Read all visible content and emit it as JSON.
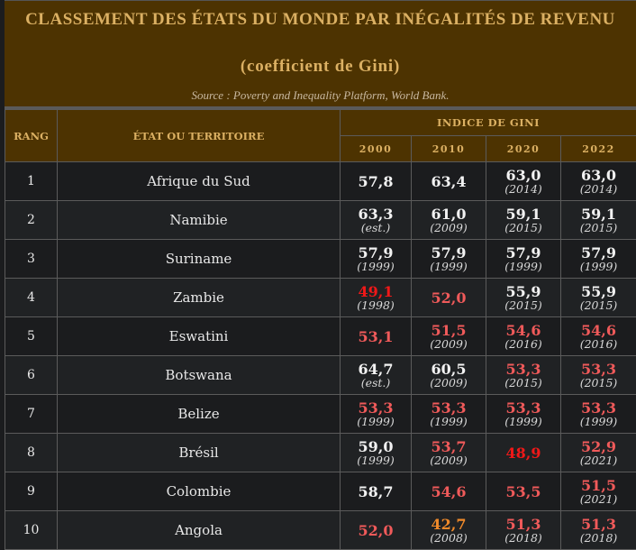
{
  "caption": {
    "title_line1": "CLASSEMENT DES ÉTATS DU MONDE PAR INÉGALITÉS DE REVENU",
    "title_line2": "(coefficient de Gini)",
    "source": "Source : Poverty and Inequality Platform, World Bank."
  },
  "headers": {
    "rank": "RANG",
    "country": "ÉTAT OU TERRITOIRE",
    "group": "INDICE DE GINI",
    "years": [
      "2000",
      "2010",
      "2020",
      "2022"
    ]
  },
  "colors": {
    "header_bg": "#4d3301",
    "header_text": "#dbb063",
    "white": "#f2f2f2",
    "red": "#f05a5a",
    "bright_red": "#f01818",
    "orange": "#f08a2a"
  },
  "rows": [
    {
      "rank": "1",
      "country": "Afrique du Sud",
      "cells": [
        {
          "value": "57,8",
          "note": "",
          "color": "white"
        },
        {
          "value": "63,4",
          "note": "",
          "color": "white"
        },
        {
          "value": "63,0",
          "note": "(2014)",
          "color": "white"
        },
        {
          "value": "63,0",
          "note": "(2014)",
          "color": "white"
        }
      ]
    },
    {
      "rank": "2",
      "country": "Namibie",
      "cells": [
        {
          "value": "63,3",
          "note": "(est.)",
          "color": "white"
        },
        {
          "value": "61,0",
          "note": "(2009)",
          "color": "white"
        },
        {
          "value": "59,1",
          "note": "(2015)",
          "color": "white"
        },
        {
          "value": "59,1",
          "note": "(2015)",
          "color": "white"
        }
      ]
    },
    {
      "rank": "3",
      "country": "Suriname",
      "cells": [
        {
          "value": "57,9",
          "note": "(1999)",
          "color": "white"
        },
        {
          "value": "57,9",
          "note": "(1999)",
          "color": "white"
        },
        {
          "value": "57,9",
          "note": "(1999)",
          "color": "white"
        },
        {
          "value": "57,9",
          "note": "(1999)",
          "color": "white"
        }
      ]
    },
    {
      "rank": "4",
      "country": "Zambie",
      "cells": [
        {
          "value": "49,1",
          "note": "(1998)",
          "color": "bright"
        },
        {
          "value": "52,0",
          "note": "",
          "color": "red"
        },
        {
          "value": "55,9",
          "note": "(2015)",
          "color": "white"
        },
        {
          "value": "55,9",
          "note": "(2015)",
          "color": "white"
        }
      ]
    },
    {
      "rank": "5",
      "country": "Eswatini",
      "cells": [
        {
          "value": "53,1",
          "note": "",
          "color": "red"
        },
        {
          "value": "51,5",
          "note": "(2009)",
          "color": "red"
        },
        {
          "value": "54,6",
          "note": "(2016)",
          "color": "red"
        },
        {
          "value": "54,6",
          "note": "(2016)",
          "color": "red"
        }
      ]
    },
    {
      "rank": "6",
      "country": "Botswana",
      "cells": [
        {
          "value": "64,7",
          "note": "(est.)",
          "color": "white"
        },
        {
          "value": "60,5",
          "note": "(2009)",
          "color": "white"
        },
        {
          "value": "53,3",
          "note": "(2015)",
          "color": "red"
        },
        {
          "value": "53,3",
          "note": "(2015)",
          "color": "red"
        }
      ]
    },
    {
      "rank": "7",
      "country": "Belize",
      "cells": [
        {
          "value": "53,3",
          "note": "(1999)",
          "color": "red"
        },
        {
          "value": "53,3",
          "note": "(1999)",
          "color": "red"
        },
        {
          "value": "53,3",
          "note": "(1999)",
          "color": "red"
        },
        {
          "value": "53,3",
          "note": "(1999)",
          "color": "red"
        }
      ]
    },
    {
      "rank": "8",
      "country": "Brésil",
      "cells": [
        {
          "value": "59,0",
          "note": "(1999)",
          "color": "white"
        },
        {
          "value": "53,7",
          "note": "(2009)",
          "color": "red"
        },
        {
          "value": "48,9",
          "note": "",
          "color": "bright"
        },
        {
          "value": "52,9",
          "note": "(2021)",
          "color": "red"
        }
      ]
    },
    {
      "rank": "9",
      "country": "Colombie",
      "cells": [
        {
          "value": "58,7",
          "note": "",
          "color": "white"
        },
        {
          "value": "54,6",
          "note": "",
          "color": "red"
        },
        {
          "value": "53,5",
          "note": "",
          "color": "red"
        },
        {
          "value": "51,5",
          "note": "(2021)",
          "color": "red"
        }
      ]
    },
    {
      "rank": "10",
      "country": "Angola",
      "cells": [
        {
          "value": "52,0",
          "note": "",
          "color": "red"
        },
        {
          "value": "42,7",
          "note": "(2008)",
          "color": "orange"
        },
        {
          "value": "51,3",
          "note": "(2018)",
          "color": "red"
        },
        {
          "value": "51,3",
          "note": "(2018)",
          "color": "red"
        }
      ]
    }
  ]
}
